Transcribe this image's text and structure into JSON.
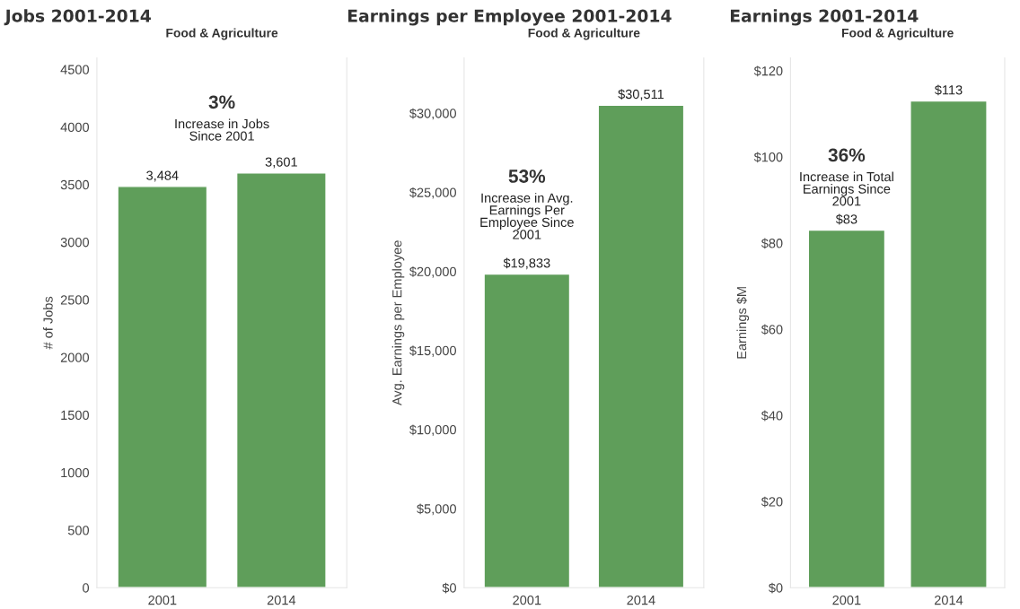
{
  "chart_data": [
    {
      "type": "bar",
      "title": "Jobs 2001-2014",
      "subtitle": "Food & Agriculture",
      "ylabel": "# of Jobs",
      "categories": [
        "2001",
        "2014"
      ],
      "values": [
        3484,
        3601
      ],
      "value_labels": [
        "3,484",
        "3,601"
      ],
      "color": "#5f9e5a",
      "ylim": [
        0,
        4600
      ],
      "yticks": [
        0,
        500,
        1000,
        1500,
        2000,
        2500,
        3000,
        3500,
        4000,
        4500
      ],
      "annotations": [
        "3%",
        "Increase in Jobs\nSince 2001"
      ]
    },
    {
      "type": "bar",
      "title": "Earnings per Employee 2001-2014",
      "subtitle": "Food & Agriculture",
      "ylabel": "Avg. Earnings per Employee",
      "categories": [
        "2001",
        "2014"
      ],
      "values": [
        19833,
        30511
      ],
      "value_labels": [
        "$19,833",
        "$30,511"
      ],
      "color": "#5f9e5a",
      "ylim": [
        0,
        33500
      ],
      "yticks": [
        {
          "value": 0,
          "label": "$0"
        },
        {
          "value": 5000,
          "label": "$5,000"
        },
        {
          "value": 10000,
          "label": "$10,000"
        },
        {
          "value": 15000,
          "label": "$15,000"
        },
        {
          "value": 20000,
          "label": "$20,000"
        },
        {
          "value": 25000,
          "label": "$25,000"
        },
        {
          "value": 30000,
          "label": "$30,000"
        }
      ],
      "annotations": [
        "53%",
        "Increase in Avg.\nEarnings Per\nEmployee Since\n2001"
      ]
    },
    {
      "type": "bar",
      "title": "Earnings 2001-2014",
      "subtitle": "Food & Agriculture",
      "ylabel": "Earnings $M",
      "categories": [
        "2001",
        "2014"
      ],
      "values": [
        83,
        113
      ],
      "value_labels": [
        "$83",
        "$113"
      ],
      "color": "#5f9e5a",
      "ylim": [
        0,
        123
      ],
      "yticks": [
        {
          "value": 0,
          "label": "$0"
        },
        {
          "value": 20,
          "label": "$20"
        },
        {
          "value": 40,
          "label": "$40"
        },
        {
          "value": 60,
          "label": "$60"
        },
        {
          "value": 80,
          "label": "$80"
        },
        {
          "value": 100,
          "label": "$100"
        },
        {
          "value": 120,
          "label": "$120"
        }
      ],
      "annotations": [
        "36%",
        "Increase in Total\nEarnings Since\n2001"
      ]
    }
  ]
}
